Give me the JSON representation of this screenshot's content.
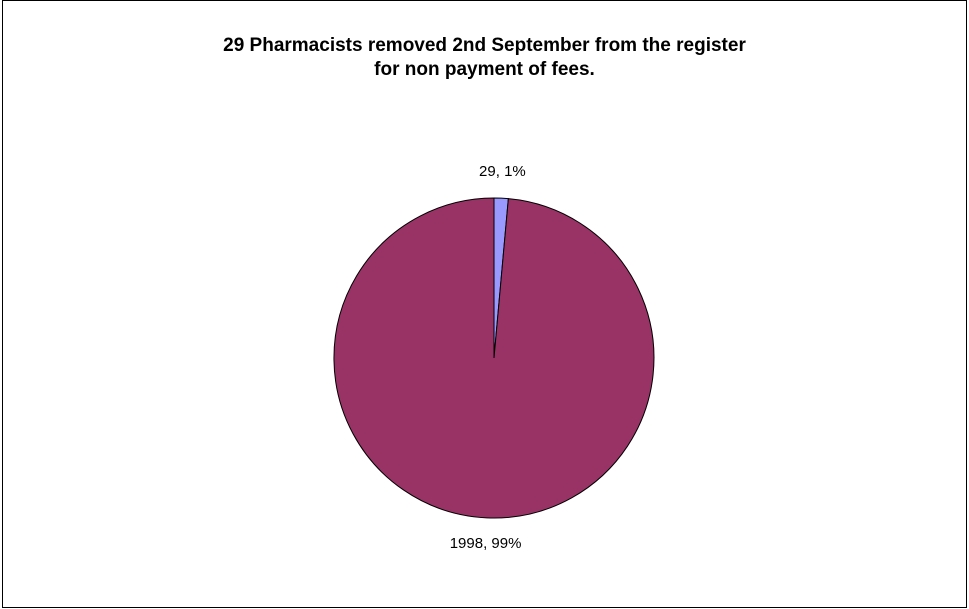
{
  "chart_data": {
    "type": "pie",
    "title_lines": [
      "29 Pharmacists removed 2nd September from the register",
      "for non payment of fees."
    ],
    "slices": [
      {
        "value": 29,
        "percent_label": "1%",
        "label": "29, 1%",
        "color": "#9999FF"
      },
      {
        "value": 1998,
        "percent_label": "99%",
        "label": "1998, 99%",
        "color": "#993366"
      }
    ],
    "legend": false
  }
}
